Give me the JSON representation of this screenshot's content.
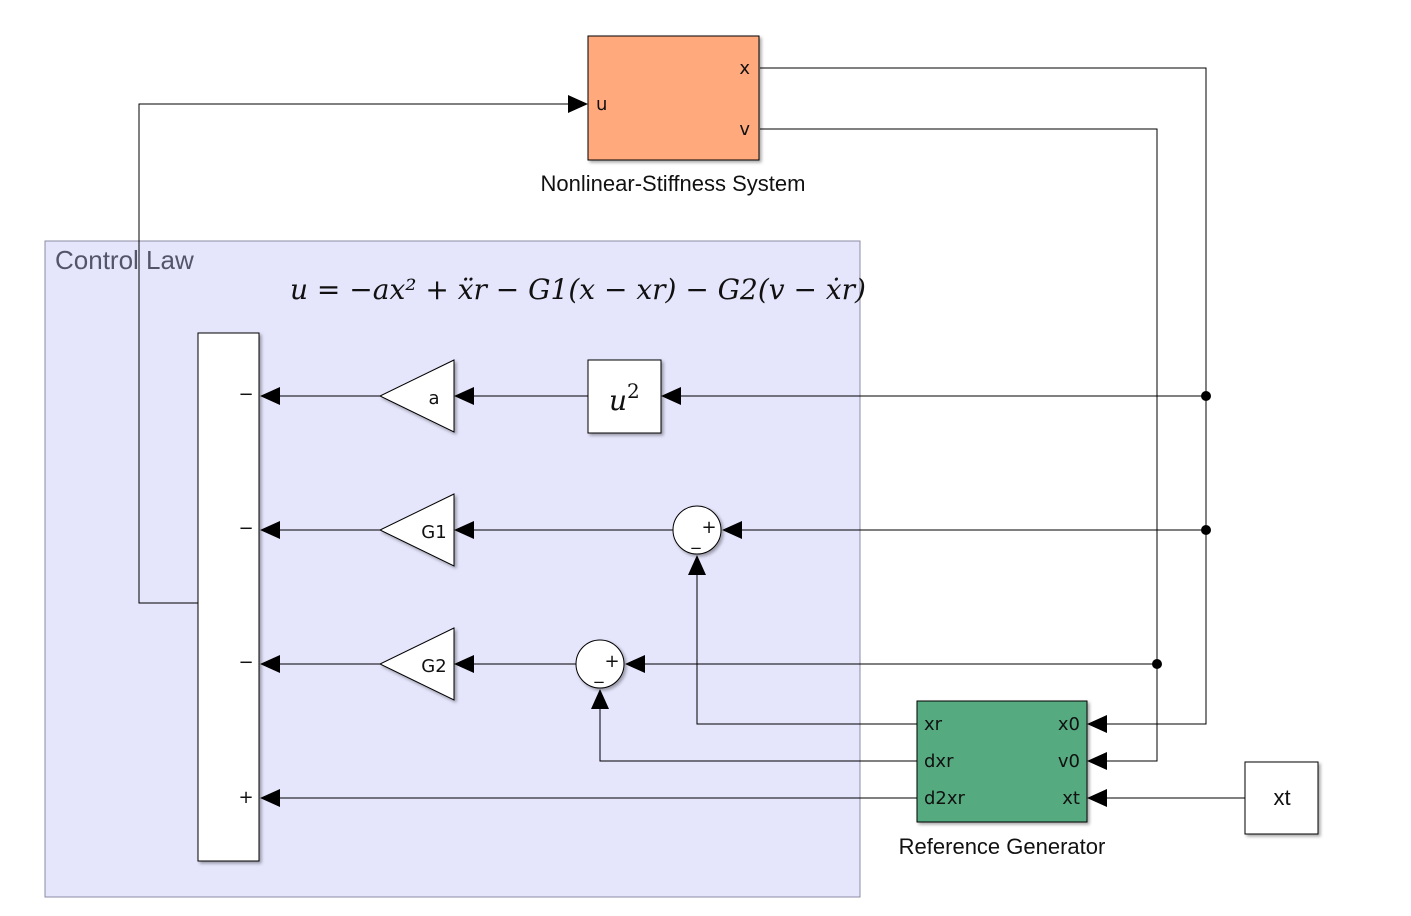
{
  "colors": {
    "plant": "#ffa97d",
    "refgen": "#55aa7f",
    "area": "#e5e5fc",
    "area_border": "#8c8ca6",
    "line": "#000000"
  },
  "plant": {
    "name": "Nonlinear-Stiffness System",
    "in_port": "u",
    "out_ports": [
      "x",
      "v"
    ]
  },
  "control_area": {
    "title": "Control Law",
    "equation": "u = −ax² + ẍr − G1(x − xr) − G2(v − ẋr)"
  },
  "blocks": {
    "square": {
      "base": "u",
      "exp": "2"
    },
    "gain_a": "a",
    "gain_g1": "G1",
    "gain_g2": "G2",
    "sum_signs": [
      "−",
      "−",
      "−",
      "+"
    ],
    "sum1_signs": {
      "plus": "+",
      "minus": "_"
    },
    "sum2_signs": {
      "plus": "+",
      "minus": "_"
    },
    "xt_const": "xt"
  },
  "refgen": {
    "name": "Reference Generator",
    "out_ports": [
      "xr",
      "dxr",
      "d2xr"
    ],
    "in_ports": [
      "x0",
      "v0",
      "xt"
    ]
  }
}
